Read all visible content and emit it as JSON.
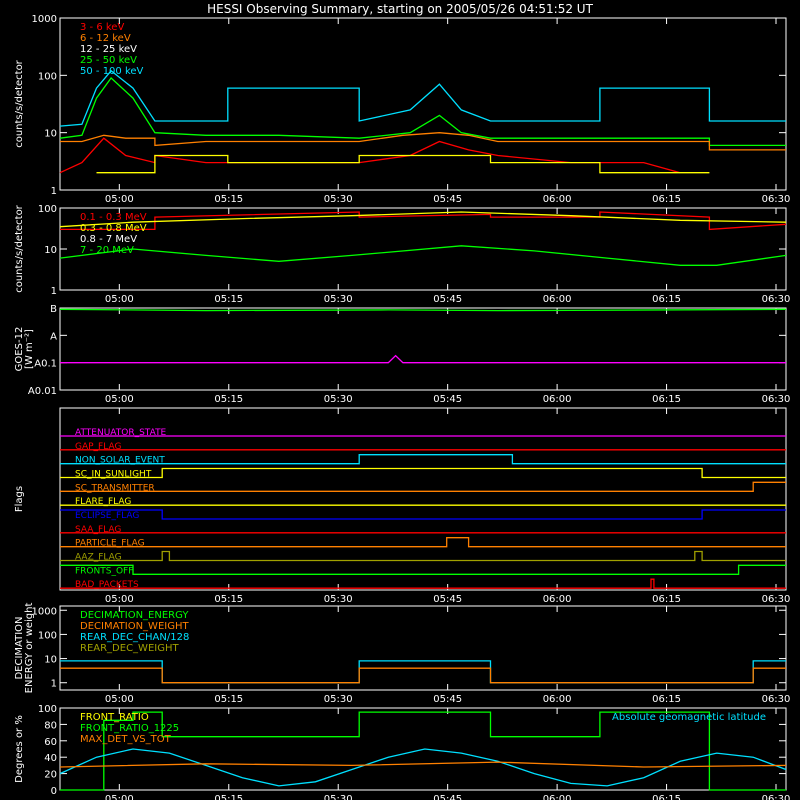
{
  "title": "HESSI Observing Summary, starting on 2005/05/26 04:51:52 UT",
  "time_ticks": [
    "05:00",
    "05:15",
    "05:30",
    "05:45",
    "06:00",
    "06:15",
    "06:30"
  ],
  "time_tick_minutes": [
    8.13,
    23.13,
    38.13,
    53.13,
    68.13,
    83.13,
    98.13
  ],
  "time_range_minutes": [
    0,
    99.5
  ],
  "colors": {
    "red": "#ff0000",
    "orange": "#ff8000",
    "yellow": "#ffff00",
    "green": "#00ff00",
    "cyan": "#00e0ff",
    "blue": "#0000ff",
    "magenta": "#ff00ff",
    "olive": "#a0a000",
    "white": "#ffffff"
  },
  "chart_data": [
    {
      "id": "lo",
      "type": "line",
      "ylabel": "counts/s/detector",
      "yscale": "log",
      "ylim": [
        1,
        1000
      ],
      "yticks": [
        "1",
        "10",
        "100",
        "1000"
      ],
      "legend": [
        "3 - 6 keV",
        "6 - 12 keV",
        "12 - 25 keV",
        "25 - 50 keV",
        "50 - 100 keV"
      ],
      "legend_colors": [
        "#ff0000",
        "#ff8000",
        "#ffffff",
        "#00ff00",
        "#00e0ff"
      ],
      "series": [
        {
          "color": "#00e0ff",
          "x": [
            0,
            3,
            5,
            7,
            10,
            13,
            13,
            23,
            23,
            41,
            41,
            48,
            52,
            55,
            59,
            59,
            74,
            74,
            89,
            89,
            99.5
          ],
          "y": [
            13,
            14,
            60,
            120,
            60,
            16,
            16,
            16,
            60,
            60,
            16,
            25,
            70,
            25,
            16,
            16,
            16,
            60,
            60,
            16,
            16
          ]
        },
        {
          "color": "#00ff00",
          "x": [
            0,
            3,
            5,
            7,
            10,
            13,
            20,
            30,
            41,
            48,
            52,
            55,
            59,
            70,
            85,
            89,
            89,
            99.5
          ],
          "y": [
            8,
            9,
            40,
            90,
            40,
            10,
            9,
            9,
            8,
            10,
            20,
            10,
            8,
            8,
            8,
            8,
            6,
            6
          ]
        },
        {
          "color": "#ff8000",
          "x": [
            0,
            3,
            6,
            9,
            13,
            13,
            20,
            30,
            41,
            47,
            52,
            56,
            60,
            70,
            85,
            89,
            89,
            99.5
          ],
          "y": [
            7,
            7,
            9,
            8,
            8,
            6,
            7,
            7,
            7,
            9,
            10,
            9,
            7,
            7,
            7,
            7,
            5,
            5
          ]
        },
        {
          "color": "#ff0000",
          "x": [
            0,
            3,
            6,
            9,
            13,
            13,
            20,
            30,
            41,
            48,
            52,
            56,
            60,
            70,
            80,
            85
          ],
          "y": [
            2,
            3,
            8,
            4,
            3,
            4,
            3,
            3,
            3,
            4,
            7,
            5,
            4,
            3,
            3,
            2
          ]
        },
        {
          "color": "#ffff00",
          "x": [
            5,
            13,
            13,
            23,
            23,
            41,
            41,
            59,
            59,
            74,
            74,
            89
          ],
          "y": [
            2,
            2,
            4,
            4,
            3,
            3,
            4,
            4,
            3,
            3,
            2,
            2
          ]
        }
      ]
    },
    {
      "id": "hi",
      "type": "line",
      "ylabel": "counts/s/detector",
      "yscale": "log",
      "ylim": [
        1,
        100
      ],
      "yticks": [
        "1",
        "10",
        "100"
      ],
      "legend": [
        "0.1 - 0.3 MeV",
        "0.3 - 0.8 MeV",
        "0.8 - 7 MeV",
        "7 - 20 MeV"
      ],
      "legend_colors": [
        "#ff0000",
        "#ffff00",
        "#ffffff",
        "#00ff00"
      ],
      "series": [
        {
          "color": "#ff0000",
          "x": [
            0,
            13,
            13,
            41,
            41,
            59,
            59,
            74,
            74,
            89,
            89,
            99.5
          ],
          "y": [
            30,
            30,
            60,
            80,
            60,
            70,
            60,
            60,
            80,
            60,
            30,
            40
          ]
        },
        {
          "color": "#ffff00",
          "x": [
            0,
            10,
            25,
            40,
            55,
            70,
            85,
            99.5
          ],
          "y": [
            35,
            45,
            55,
            65,
            80,
            65,
            50,
            45
          ]
        },
        {
          "color": "#00ff00",
          "x": [
            0,
            10,
            20,
            30,
            40,
            55,
            65,
            75,
            85,
            90,
            99.5
          ],
          "y": [
            6,
            10,
            7,
            5,
            7,
            12,
            9,
            6,
            4,
            4,
            7
          ]
        }
      ]
    },
    {
      "id": "goes",
      "type": "line",
      "ylabel": "GOES-12\n[W m⁻²]",
      "yscale": "log",
      "ylim": [
        0.01,
        10
      ],
      "yticks": [
        "A0.01",
        "A0.1",
        "A",
        "B"
      ],
      "series": [
        {
          "color": "#00ff00",
          "x": [
            0,
            20,
            45,
            60,
            70,
            99.5
          ],
          "y": [
            9,
            8,
            8.5,
            8,
            8.2,
            9
          ]
        },
        {
          "color": "#ff00ff",
          "x": [
            0,
            45,
            46,
            47,
            99.5
          ],
          "y": [
            0.1,
            0.1,
            0.18,
            0.1,
            0.1
          ]
        }
      ]
    },
    {
      "id": "flags",
      "type": "line",
      "ylabel": "Flags",
      "rows": [
        {
          "label": "ATTENUATOR_STATE",
          "color": "#ff00ff",
          "x": [
            0,
            99.5
          ],
          "y": [
            0,
            0
          ]
        },
        {
          "label": "GAP_FLAG",
          "color": "#ff0000",
          "x": [
            0,
            99.5
          ],
          "y": [
            0,
            0
          ]
        },
        {
          "label": "NON_SOLAR_EVENT",
          "color": "#00e0ff",
          "x": [
            0,
            41,
            41,
            62,
            62,
            99.5
          ],
          "y": [
            0,
            0,
            1,
            1,
            0,
            0
          ]
        },
        {
          "label": "SC_IN_SUNLIGHT",
          "color": "#ffff00",
          "x": [
            0,
            14,
            14,
            88,
            88,
            99.5
          ],
          "y": [
            0,
            0,
            1,
            1,
            0,
            0
          ]
        },
        {
          "label": "SC_TRANSMITTER",
          "color": "#ff8000",
          "x": [
            0,
            95,
            95,
            99.5
          ],
          "y": [
            0,
            0,
            1,
            1
          ]
        },
        {
          "label": "FLARE_FLAG",
          "color": "#ffff00",
          "x": [
            0,
            99.5
          ],
          "y": [
            0,
            0
          ]
        },
        {
          "label": "ECLIPSE_FLAG",
          "color": "#0000ff",
          "x": [
            0,
            14,
            14,
            88,
            88,
            99.5
          ],
          "y": [
            1,
            1,
            0,
            0,
            1,
            1
          ]
        },
        {
          "label": "SAA_FLAG",
          "color": "#ff0000",
          "x": [
            0,
            99.5
          ],
          "y": [
            0,
            0
          ]
        },
        {
          "label": "PARTICLE_FLAG",
          "color": "#ff8000",
          "x": [
            0,
            53,
            53,
            56,
            56,
            99.5
          ],
          "y": [
            0,
            0,
            1,
            1,
            0,
            0
          ]
        },
        {
          "label": "AAZ_FLAG",
          "color": "#a0a000",
          "x": [
            0,
            14,
            14,
            15,
            15,
            87,
            87,
            88,
            88,
            99.5
          ],
          "y": [
            0,
            0,
            1,
            1,
            0,
            0,
            1,
            1,
            0,
            0
          ]
        },
        {
          "label": "FRONTS_OFF",
          "color": "#00ff00",
          "x": [
            0,
            10,
            10,
            93,
            93,
            99.5
          ],
          "y": [
            1,
            1,
            0,
            0,
            1,
            1
          ]
        },
        {
          "label": "BAD_PACKETS",
          "color": "#ff0000",
          "x": [
            0,
            81,
            81,
            81.4,
            81.4,
            99.5
          ],
          "y": [
            0,
            0,
            1,
            1,
            0,
            0
          ]
        }
      ]
    },
    {
      "id": "dec",
      "type": "line",
      "ylabel": "DECIMATION\nENERGY or weight",
      "yscale": "log",
      "ylim": [
        0.5,
        1500
      ],
      "yticks": [
        "1",
        "10",
        "100",
        "1000"
      ],
      "legend": [
        "DECIMATION_ENERGY",
        "DECIMATION_WEIGHT",
        "REAR_DEC_CHAN/128",
        "REAR_DEC_WEIGHT"
      ],
      "legend_colors": [
        "#00ff00",
        "#ff8000",
        "#00e0ff",
        "#a0a000"
      ],
      "series": [
        {
          "color": "#00e0ff",
          "x": [
            0,
            14,
            14,
            41,
            41,
            59,
            59,
            95,
            95,
            99.5
          ],
          "y": [
            8,
            8,
            1,
            1,
            8,
            8,
            1,
            1,
            8,
            8
          ]
        },
        {
          "color": "#ff8000",
          "x": [
            0,
            14,
            14,
            41,
            41,
            59,
            59,
            95,
            95,
            99.5
          ],
          "y": [
            4,
            4,
            1,
            1,
            4,
            4,
            1,
            1,
            4,
            4
          ]
        }
      ]
    },
    {
      "id": "ratio",
      "type": "line",
      "ylabel": "Degrees or %",
      "ylim": [
        0,
        100
      ],
      "yticks": [
        "0",
        "20",
        "40",
        "60",
        "80",
        "100"
      ],
      "legend": [
        "FRONT_RATIO",
        "FRONT_RATIO_1225",
        "MAX_DET_VS_TOT"
      ],
      "legend_colors": [
        "#ffff00",
        "#00ff00",
        "#ff8000"
      ],
      "right_label": "Absolute geomagnetic latitude",
      "right_label_color": "#00e0ff",
      "series": [
        {
          "color": "#00ff00",
          "x": [
            0,
            6,
            6,
            10,
            10,
            14,
            14,
            41,
            41,
            59,
            59,
            74,
            74,
            89,
            89,
            99.5
          ],
          "y": [
            0,
            0,
            85,
            85,
            95,
            95,
            65,
            65,
            95,
            95,
            65,
            65,
            95,
            95,
            0,
            0
          ]
        },
        {
          "color": "#00e0ff",
          "x": [
            0,
            5,
            10,
            15,
            20,
            25,
            30,
            35,
            40,
            45,
            50,
            55,
            60,
            65,
            70,
            75,
            80,
            85,
            90,
            95,
            99.5
          ],
          "y": [
            20,
            40,
            50,
            45,
            30,
            15,
            5,
            10,
            25,
            40,
            50,
            45,
            35,
            20,
            8,
            5,
            15,
            35,
            45,
            40,
            25
          ]
        },
        {
          "color": "#ff8000",
          "x": [
            0,
            20,
            40,
            60,
            80,
            99.5
          ],
          "y": [
            28,
            32,
            30,
            34,
            28,
            30
          ]
        }
      ]
    }
  ]
}
